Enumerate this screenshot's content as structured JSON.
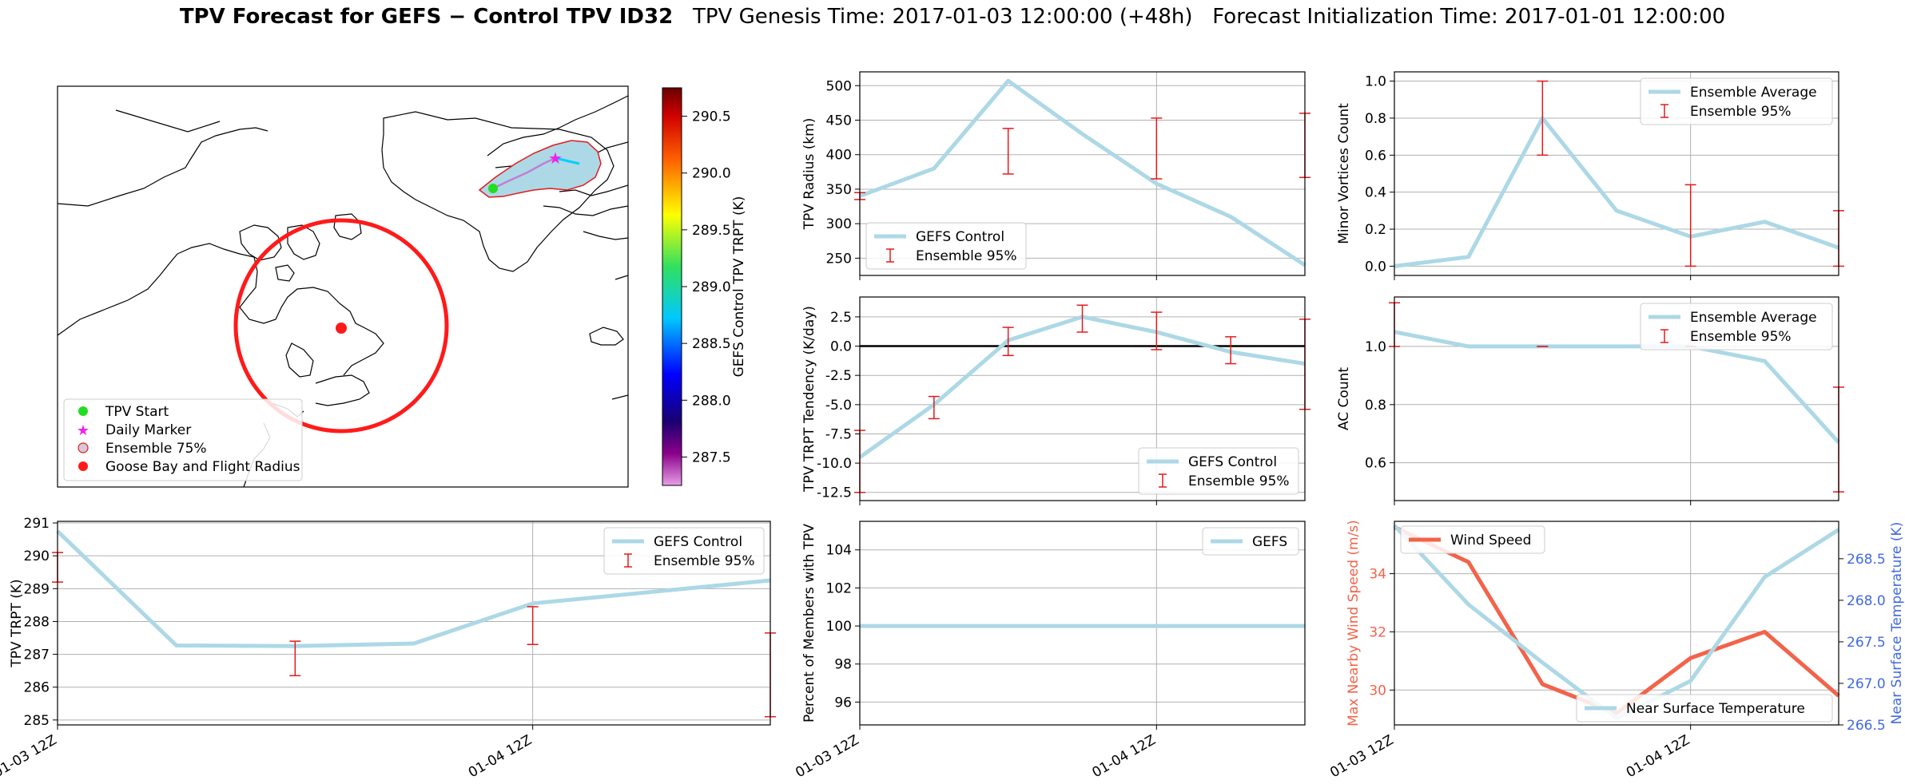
{
  "title": {
    "bold": "TPV Forecast for GEFS − Control TPV ID32",
    "rest": "TPV Genesis Time: 2017-01-03 12:00:00 (+48h)   Forecast Initialization Time: 2017-01-01 12:00:00"
  },
  "colors": {
    "light_blue": "#add8e6",
    "err_red": "#e31a1c",
    "wind_red": "#f2634a",
    "temp_blue": "#4169e1",
    "flight_red": "#ff1a1a",
    "start_green": "#22dd22",
    "daily_magenta": "#ee22ee"
  },
  "map": {
    "legend": [
      "TPV Start",
      "Daily Marker",
      "Ensemble 75%",
      "Goose Bay and Flight Radius"
    ],
    "colorbar": {
      "label": "GEFS Control TPV TRPT (K)",
      "min": 287.25,
      "max": 290.75,
      "ticks": [
        "287.5",
        "288.0",
        "288.5",
        "289.0",
        "289.5",
        "290.0",
        "290.5"
      ]
    }
  },
  "x_axis": {
    "tick_labels": [
      "01-03 12Z",
      "01-04 12Z"
    ]
  },
  "chart_data": [
    {
      "id": "radius",
      "type": "line",
      "ylabel": "TPV Radius (km)",
      "x": [
        "01-03 12Z",
        "01-03 18Z",
        "01-04 00Z",
        "01-04 06Z",
        "01-04 12Z",
        "01-04 18Z",
        "01-05 00Z"
      ],
      "ylim": [
        225,
        520
      ],
      "yticks": [
        "250",
        "300",
        "350",
        "400",
        "450",
        "500"
      ],
      "series": [
        {
          "name": "GEFS Control",
          "values": [
            340,
            380,
            507,
            430,
            358,
            310,
            240
          ]
        }
      ],
      "errorbars": {
        "name": "Ensemble 95%",
        "x_index": [
          0,
          2,
          4,
          6
        ],
        "low": [
          335,
          372,
          365,
          367
        ],
        "high": [
          345,
          438,
          453,
          460
        ]
      },
      "legend_loc": "lower-left"
    },
    {
      "id": "minor",
      "type": "line",
      "ylabel": "Minor Vortices Count",
      "x": [
        "01-03 12Z",
        "01-03 18Z",
        "01-04 00Z",
        "01-04 06Z",
        "01-04 12Z",
        "01-04 18Z",
        "01-05 00Z"
      ],
      "ylim": [
        -0.05,
        1.05
      ],
      "yticks": [
        "0.0",
        "0.2",
        "0.4",
        "0.6",
        "0.8",
        "1.0"
      ],
      "series": [
        {
          "name": "Ensemble Average",
          "values": [
            0.0,
            0.05,
            0.8,
            0.3,
            0.16,
            0.24,
            0.1
          ]
        }
      ],
      "errorbars": {
        "name": "Ensemble 95%",
        "x_index": [
          2,
          4,
          6
        ],
        "low": [
          0.6,
          0.0,
          0.0
        ],
        "high": [
          1.0,
          0.44,
          0.3
        ]
      },
      "legend_loc": "upper-right"
    },
    {
      "id": "tendency",
      "type": "line",
      "ylabel": "TPV TRPT Tendency (K/day)",
      "x": [
        "01-03 12Z",
        "01-03 18Z",
        "01-04 00Z",
        "01-04 06Z",
        "01-04 12Z",
        "01-04 18Z",
        "01-05 00Z"
      ],
      "ylim": [
        -13.2,
        4.2
      ],
      "yticks": [
        "2.5",
        "0.0",
        "-2.5",
        "-5.0",
        "-7.5",
        "-10.0",
        "-12.5"
      ],
      "series": [
        {
          "name": "GEFS Control",
          "values": [
            -9.5,
            -5.0,
            0.5,
            2.5,
            1.2,
            -0.5,
            -1.5
          ]
        }
      ],
      "errorbars": {
        "name": "Ensemble 95%",
        "x_index": [
          0,
          1,
          2,
          3,
          4,
          5,
          6
        ],
        "low": [
          -12.5,
          -6.2,
          -0.8,
          1.2,
          -0.3,
          -1.5,
          -5.4
        ],
        "high": [
          -7.2,
          -4.3,
          1.6,
          3.5,
          2.9,
          0.8,
          2.3
        ]
      },
      "zero_line": true,
      "legend_loc": "lower-right"
    },
    {
      "id": "ac",
      "type": "line",
      "ylabel": "AC Count",
      "x": [
        "01-03 12Z",
        "01-03 18Z",
        "01-04 00Z",
        "01-04 06Z",
        "01-04 12Z",
        "01-04 18Z",
        "01-05 00Z"
      ],
      "ylim": [
        0.47,
        1.17
      ],
      "yticks": [
        "0.6",
        "0.8",
        "1.0"
      ],
      "series": [
        {
          "name": "Ensemble Average",
          "values": [
            1.05,
            1.0,
            1.0,
            1.0,
            1.0,
            0.95,
            0.67
          ]
        }
      ],
      "errorbars": {
        "name": "Ensemble 95%",
        "x_index": [
          0,
          2,
          4,
          6
        ],
        "low": [
          1.0,
          1.0,
          1.0,
          0.5
        ],
        "high": [
          1.15,
          1.0,
          1.0,
          0.86
        ]
      },
      "legend_loc": "upper-right"
    },
    {
      "id": "trpt",
      "type": "line",
      "ylabel": "TPV TRPT (K)",
      "x": [
        "01-03 12Z",
        "01-03 18Z",
        "01-04 00Z",
        "01-04 06Z",
        "01-04 12Z",
        "01-04 18Z",
        "01-05 00Z"
      ],
      "ylim": [
        284.85,
        291.05
      ],
      "yticks": [
        "285",
        "286",
        "287",
        "288",
        "289",
        "290",
        "291"
      ],
      "series": [
        {
          "name": "GEFS Control",
          "values": [
            290.75,
            287.27,
            287.25,
            287.33,
            288.55,
            288.9,
            289.25
          ]
        }
      ],
      "errorbars": {
        "name": "Ensemble 95%",
        "x_index": [
          0,
          2,
          4,
          6
        ],
        "low": [
          289.2,
          286.35,
          287.3,
          285.1
        ],
        "high": [
          290.1,
          287.4,
          288.45,
          287.65
        ]
      },
      "legend_loc": "upper-right"
    },
    {
      "id": "percent",
      "type": "line",
      "ylabel": "Percent of Members with TPV",
      "x": [
        "01-03 12Z",
        "01-03 18Z",
        "01-04 00Z",
        "01-04 06Z",
        "01-04 12Z",
        "01-04 18Z",
        "01-05 00Z"
      ],
      "ylim": [
        94.8,
        105.5
      ],
      "yticks": [
        "96",
        "98",
        "100",
        "102",
        "104"
      ],
      "series": [
        {
          "name": "GEFS",
          "values": [
            100,
            100,
            100,
            100,
            100,
            100,
            100
          ]
        }
      ],
      "legend_loc": "upper-right"
    },
    {
      "id": "wind",
      "type": "line",
      "ylabel": "Max Nearby Wind Speed (m/s)",
      "y2label": "Near Surface Temperature (K)",
      "x": [
        "01-03 12Z",
        "01-03 18Z",
        "01-04 00Z",
        "01-04 06Z",
        "01-04 12Z",
        "01-04 18Z",
        "01-05 00Z"
      ],
      "ylim": [
        28.8,
        35.8
      ],
      "yticks": [
        "30",
        "32",
        "34"
      ],
      "y2lim": [
        266.5,
        268.95
      ],
      "y2ticks": [
        "266.5",
        "267.0",
        "267.5",
        "268.0",
        "268.5"
      ],
      "series": [
        {
          "name": "Wind Speed",
          "axis": "left",
          "values": [
            35.6,
            34.4,
            30.2,
            29.2,
            31.1,
            32.0,
            29.8
          ]
        },
        {
          "name": "Near Surface Temperature",
          "axis": "right",
          "values": [
            268.9,
            267.95,
            267.25,
            266.58,
            267.03,
            268.28,
            268.85
          ]
        }
      ],
      "legend_loc": "upper-left / lower-right"
    }
  ]
}
